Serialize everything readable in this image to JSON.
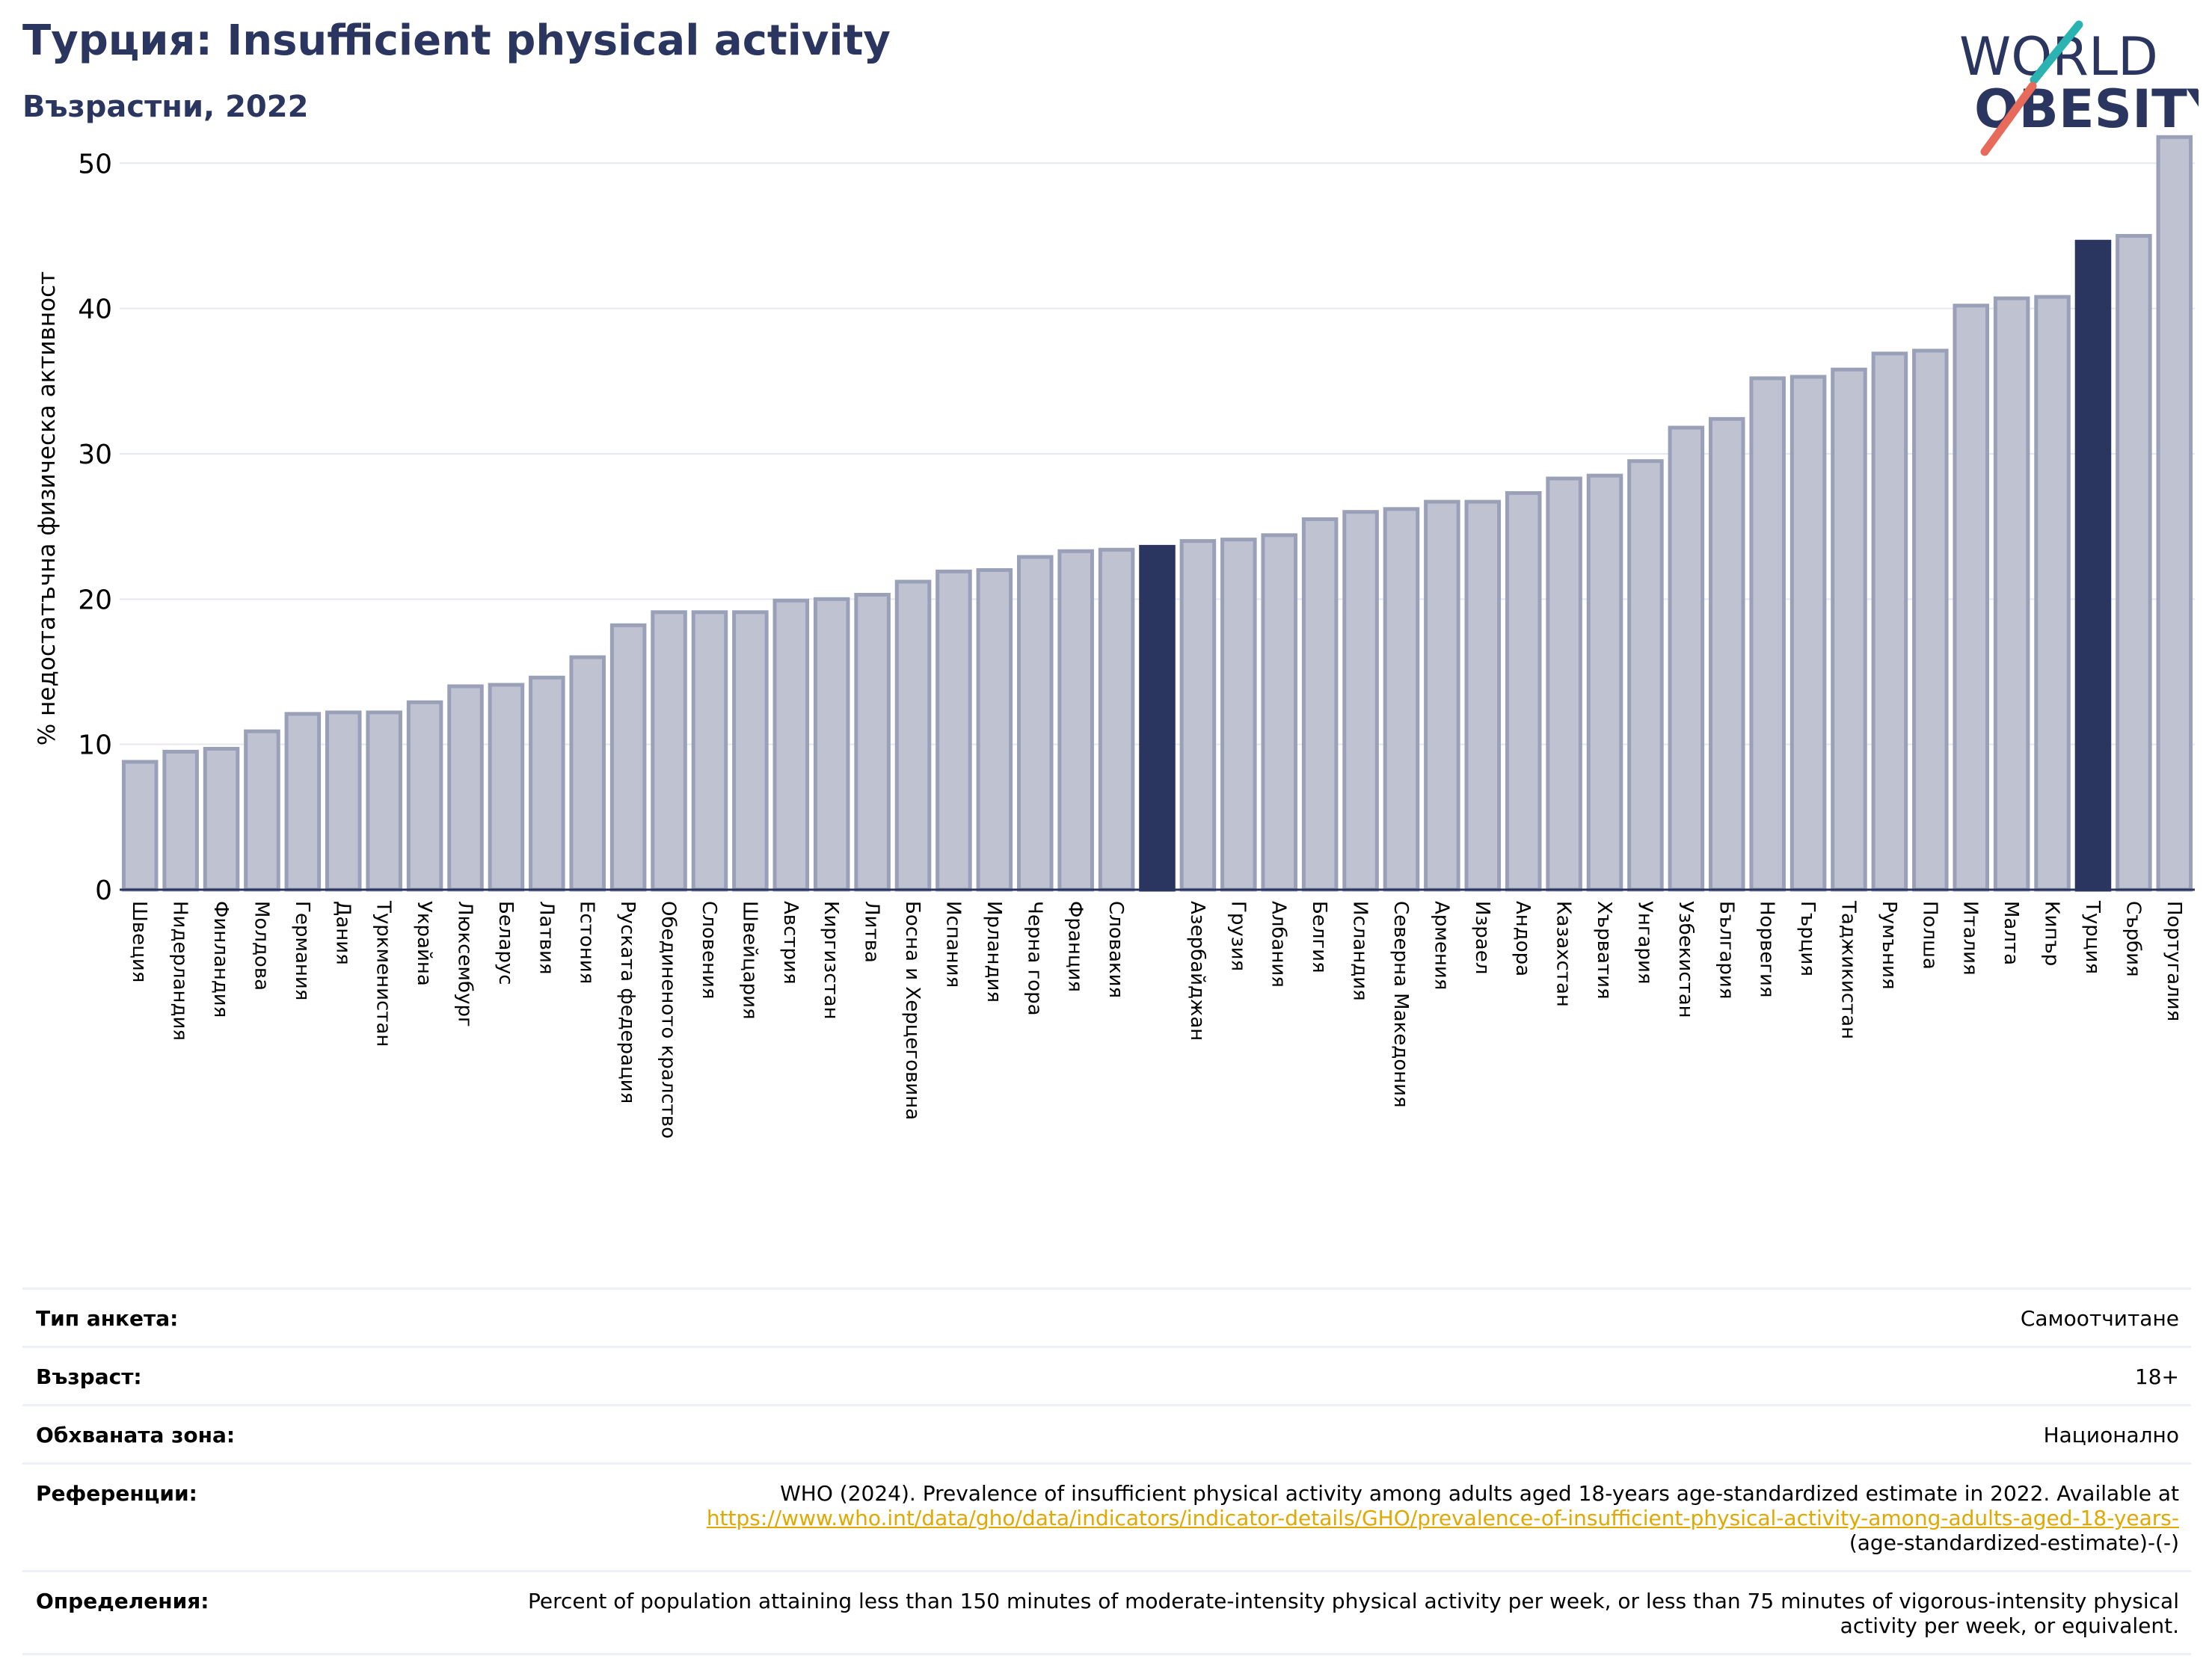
{
  "header": {
    "title": "Турция: Insufficient physical activity",
    "subtitle": "Възрастни, 2022"
  },
  "logo": {
    "line1": "WORLD",
    "line2": "OBESITY"
  },
  "colors": {
    "bar": "#bfc3d1",
    "bar_edge": "#9aa0b8",
    "highlight": "#2a3560",
    "grid": "#e6e8f0",
    "title": "#2a3560",
    "link": "#e0a800"
  },
  "chart_data": {
    "type": "bar",
    "ylabel": "% недостатъчна физическа активност",
    "ylim": [
      0,
      53
    ],
    "yticks": [
      0,
      10,
      20,
      30,
      40,
      50
    ],
    "grid": true,
    "categories": [
      "Швеция",
      "Нидерландия",
      "Финландия",
      "Молдова",
      "Германия",
      "Дания",
      "Туркменистан",
      "Украйна",
      "Люксембург",
      "Беларус",
      "Латвия",
      "Естония",
      "Руската федерация",
      "Обединеното кралство",
      "Словения",
      "Швейцария",
      "Австрия",
      "Киргизстан",
      "Литва",
      "Босна и Херцеговина",
      "Испания",
      "Ирландия",
      "Черна гора",
      "Франция",
      "Словакия",
      "",
      "Азербайджан",
      "Грузия",
      "Албания",
      "Белгия",
      "Исландия",
      "Северна Македония",
      "Армения",
      "Израел",
      "Андора",
      "Казахстан",
      "Хърватия",
      "Унгария",
      "Узбекистан",
      "България",
      "Норвегия",
      "Гърция",
      "Таджикистан",
      "Румъния",
      "Полша",
      "Италия",
      "Малта",
      "Кипър",
      "Турция",
      "Сърбия",
      "Португалия"
    ],
    "values": [
      8.8,
      9.5,
      9.7,
      10.9,
      12.1,
      12.2,
      12.2,
      12.9,
      14.0,
      14.1,
      14.6,
      16.0,
      18.2,
      19.1,
      19.1,
      19.1,
      19.9,
      20.0,
      20.3,
      21.2,
      21.9,
      22.0,
      22.9,
      23.3,
      23.4,
      23.6,
      24.0,
      24.1,
      24.4,
      25.5,
      26.0,
      26.2,
      26.7,
      26.7,
      27.3,
      28.3,
      28.5,
      29.5,
      31.8,
      32.4,
      35.2,
      35.3,
      35.8,
      36.9,
      37.1,
      40.2,
      40.7,
      40.8,
      44.6,
      45.0,
      51.8
    ],
    "highlighted": [
      25,
      48
    ]
  },
  "meta": {
    "rows": [
      {
        "label": "Тип анкета:",
        "value": "Самоотчитане"
      },
      {
        "label": "Възраст:",
        "value": "18+"
      },
      {
        "label": "Обхваната зона:",
        "value": "Национално"
      },
      {
        "label": "Референции:",
        "value": "WHO (2024). Prevalence of insufficient physical activity among adults aged 18-years age-standardized estimate in 2022. Available at",
        "link": "https://www.who.int/data/gho/data/indicators/indicator-details/GHO/prevalence-of-insufficient-physical-activity-among-adults-aged-18-years-",
        "value_tail": "(age-standardized-estimate)-(-)"
      },
      {
        "label": "Определения:",
        "value": "Percent of population attaining less than 150 minutes of moderate-intensity physical activity per week, or less than 75 minutes of vigorous-intensity physical activity per week, or equivalent."
      }
    ]
  }
}
